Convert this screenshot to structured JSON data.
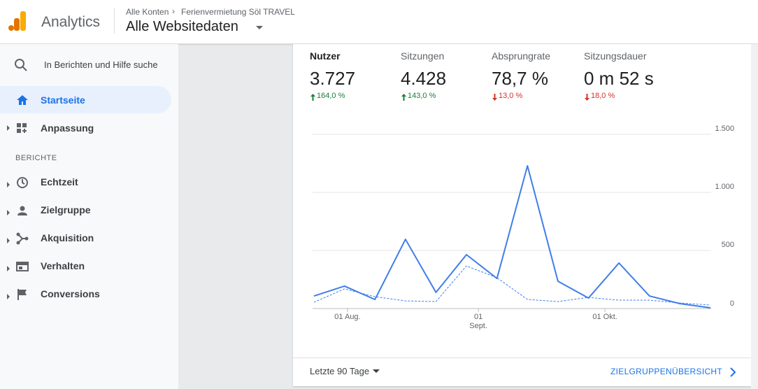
{
  "header": {
    "product": "Analytics",
    "breadcrumb": [
      "Alle Konten",
      "Ferienvermietung Söl TRAVEL"
    ],
    "view": "Alle Websitedaten"
  },
  "sidebar": {
    "search": "In Berichten und Hilfe suche",
    "items": [
      "Startseite",
      "Anpassung"
    ],
    "section": "BERICHTE",
    "reports": [
      "Echtzeit",
      "Zielgruppe",
      "Akquisition",
      "Verhalten",
      "Conversions"
    ]
  },
  "metrics": [
    {
      "label": "Nutzer",
      "value": "3.727",
      "change": "164,0 %"
    },
    {
      "label": "Sitzungen",
      "value": "4.428",
      "change": "143,0 %"
    },
    {
      "label": "Absprungrate",
      "value": "78,7 %",
      "change": "13,0 %"
    },
    {
      "label": "Sitzungsdauer",
      "value": "0 m 52 s",
      "change": "18,0 %"
    }
  ],
  "chart_data": {
    "type": "line",
    "categories": [
      null,
      null,
      null,
      null,
      null,
      null,
      null,
      null,
      null,
      null,
      null,
      null,
      null,
      null
    ],
    "series": [
      {
        "color": "#3f7ee8",
        "values": [
          108,
          193,
          78,
          596,
          139,
          464,
          259,
          1229,
          235,
          90,
          392,
          108,
          42,
          6
        ]
      },
      {
        "color": "#3f7ee8",
        "dashed": true,
        "values": [
          54,
          169,
          102,
          66,
          60,
          367,
          265,
          78,
          60,
          96,
          72,
          72,
          48,
          30
        ]
      }
    ],
    "xticks": [
      {
        "value": 1.1,
        "label": "01 Aug."
      },
      {
        "value": 5.39,
        "label": "01 Sept."
      },
      {
        "value": 9.54,
        "label": "01 Okt."
      }
    ],
    "ylim": [
      0,
      1500
    ],
    "yticks": [
      0,
      500,
      {
        "value": 1000,
        "label": "1.000"
      },
      {
        "value": 1500,
        "label": "1.500"
      }
    ],
    "grid": true
  },
  "footer": {
    "range": "Letzte 90 Tage",
    "link": "ZIELGRUPPENÜBERSICHT"
  }
}
